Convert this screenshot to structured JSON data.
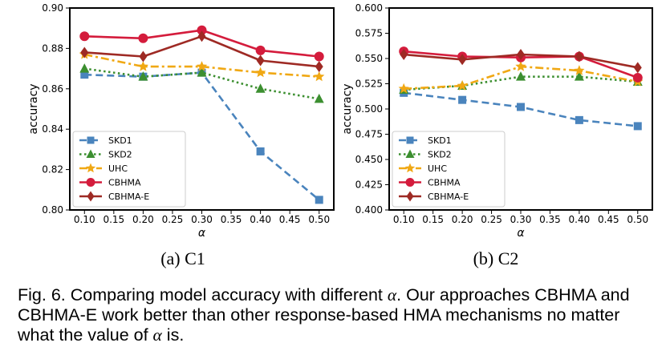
{
  "legend_order": [
    "SKD1",
    "SKD2",
    "UHC",
    "CBHMA",
    "CBHMA-E"
  ],
  "series_style": {
    "SKD1": {
      "color": "#4a84bd",
      "dash": "9,5",
      "marker": "square"
    },
    "SKD2": {
      "color": "#3c8f30",
      "dash": "2.5,3.5",
      "marker": "triangle"
    },
    "UHC": {
      "color": "#f0a814",
      "dash": "10,4,3,4",
      "marker": "star"
    },
    "CBHMA": {
      "color": "#d41c3c",
      "dash": "",
      "marker": "circle"
    },
    "CBHMA-E": {
      "color": "#9e2a24",
      "dash": "",
      "marker": "diamond"
    }
  },
  "chart_data": [
    {
      "type": "line",
      "subtitle": "(a) C1",
      "xlabel": "α",
      "ylabel": "accuracy",
      "xlim": [
        0.075,
        0.525
      ],
      "ylim": [
        0.8,
        0.9
      ],
      "xticks": [
        "0.10",
        "0.15",
        "0.20",
        "0.25",
        "0.30",
        "0.35",
        "0.40",
        "0.45",
        "0.50"
      ],
      "yticks": [
        "0.80",
        "0.82",
        "0.84",
        "0.86",
        "0.88",
        "0.90"
      ],
      "grid": false,
      "legend_position": "lower-left",
      "x": [
        0.1,
        0.2,
        0.3,
        0.4,
        0.5
      ],
      "series": [
        {
          "name": "SKD1",
          "values": [
            0.867,
            0.866,
            0.868,
            0.829,
            0.805
          ]
        },
        {
          "name": "SKD2",
          "values": [
            0.87,
            0.866,
            0.868,
            0.86,
            0.855
          ]
        },
        {
          "name": "UHC",
          "values": [
            0.877,
            0.871,
            0.871,
            0.868,
            0.866
          ]
        },
        {
          "name": "CBHMA",
          "values": [
            0.886,
            0.885,
            0.889,
            0.879,
            0.876
          ]
        },
        {
          "name": "CBHMA-E",
          "values": [
            0.878,
            0.876,
            0.886,
            0.874,
            0.871
          ]
        }
      ]
    },
    {
      "type": "line",
      "subtitle": "(b) C2",
      "xlabel": "α",
      "ylabel": "accuracy",
      "xlim": [
        0.075,
        0.525
      ],
      "ylim": [
        0.4,
        0.6
      ],
      "xticks": [
        "0.10",
        "0.15",
        "0.20",
        "0.25",
        "0.30",
        "0.35",
        "0.40",
        "0.45",
        "0.50"
      ],
      "yticks": [
        "0.400",
        "0.425",
        "0.450",
        "0.475",
        "0.500",
        "0.525",
        "0.550",
        "0.575",
        "0.600"
      ],
      "grid": false,
      "legend_position": "lower-left",
      "x": [
        0.1,
        0.2,
        0.3,
        0.4,
        0.5
      ],
      "series": [
        {
          "name": "SKD1",
          "values": [
            0.516,
            0.509,
            0.502,
            0.489,
            0.483
          ]
        },
        {
          "name": "SKD2",
          "values": [
            0.519,
            0.523,
            0.532,
            0.532,
            0.527
          ]
        },
        {
          "name": "UHC",
          "values": [
            0.52,
            0.523,
            0.542,
            0.538,
            0.527
          ]
        },
        {
          "name": "CBHMA",
          "values": [
            0.557,
            0.552,
            0.551,
            0.552,
            0.531
          ]
        },
        {
          "name": "CBHMA-E",
          "values": [
            0.554,
            0.549,
            0.554,
            0.552,
            0.541
          ]
        }
      ]
    }
  ],
  "caption": {
    "part1": "Fig. 6. Comparing model accuracy with different ",
    "alpha1": "α",
    "part2": ". Our approaches CBHMA and CBHMA-E work better than other response-based HMA mechanisms no matter what the value of ",
    "alpha2": "α",
    "part3": " is."
  }
}
